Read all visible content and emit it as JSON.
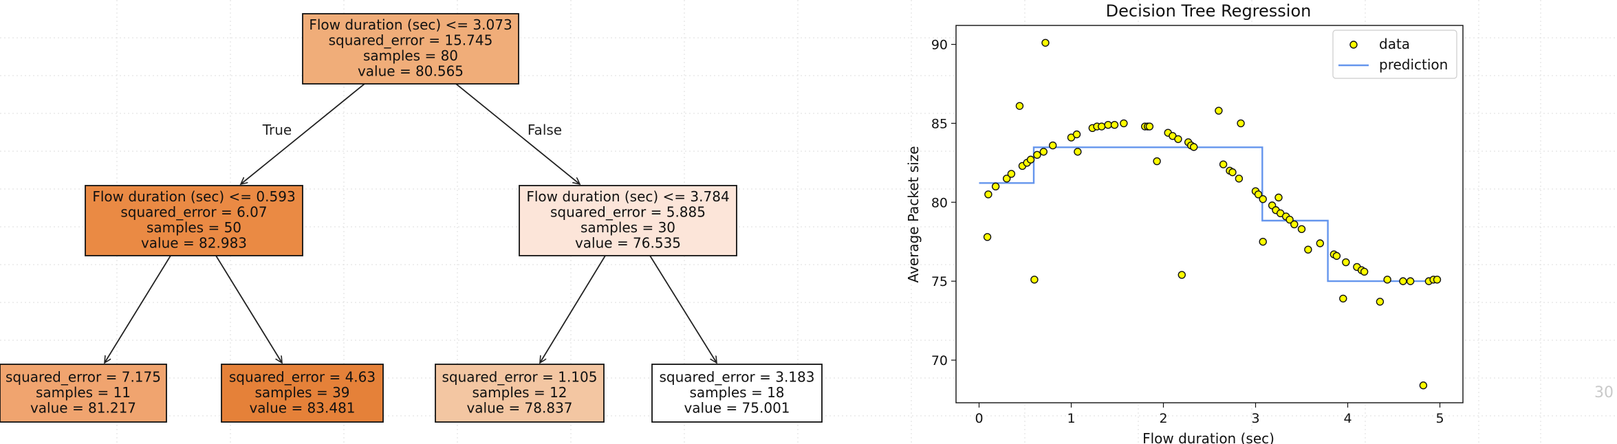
{
  "page_number": "30",
  "tree": {
    "nodes": [
      {
        "id": "root",
        "lines": [
          "Flow duration (sec) <= 3.073",
          "squared_error = 15.745",
          "samples = 80",
          "value = 80.565"
        ],
        "fill": "#f0ad79"
      },
      {
        "id": "left",
        "lines": [
          "Flow duration (sec) <= 0.593",
          "squared_error = 6.07",
          "samples = 50",
          "value = 82.983"
        ],
        "fill": "#ea8a44"
      },
      {
        "id": "right",
        "lines": [
          "Flow duration (sec) <= 3.784",
          "squared_error = 5.885",
          "samples = 30",
          "value = 76.535"
        ],
        "fill": "#fce5d9"
      },
      {
        "id": "ll",
        "lines": [
          "squared_error = 7.175",
          "samples = 11",
          "value = 81.217"
        ],
        "fill": "#f0a46f"
      },
      {
        "id": "lr",
        "lines": [
          "squared_error = 4.63",
          "samples = 39",
          "value = 83.481"
        ],
        "fill": "#e58139"
      },
      {
        "id": "rl",
        "lines": [
          "squared_error = 1.105",
          "samples = 12",
          "value = 78.837"
        ],
        "fill": "#f3c6a2"
      },
      {
        "id": "rr",
        "lines": [
          "squared_error = 3.183",
          "samples = 18",
          "value = 75.001"
        ],
        "fill": "#ffffff"
      }
    ],
    "edge_labels": {
      "true": "True",
      "false": "False"
    }
  },
  "chart_data": {
    "type": "scatter",
    "title": "Decision Tree Regression",
    "xlabel": "Flow duration (sec)",
    "ylabel": "Average Packet size",
    "xlim": [
      -0.25,
      5.25
    ],
    "ylim": [
      67.3,
      91.2
    ],
    "xticks": [
      0,
      1,
      2,
      3,
      4,
      5
    ],
    "yticks": [
      70,
      75,
      80,
      85,
      90
    ],
    "grid": false,
    "legend": {
      "placement": "top-right",
      "entries": [
        "data",
        "prediction"
      ]
    },
    "series": [
      {
        "name": "data",
        "kind": "scatter",
        "color": "#ffff00",
        "edge_color": "#111111",
        "points": [
          [
            0.09,
            77.8
          ],
          [
            0.1,
            80.5
          ],
          [
            0.18,
            81.0
          ],
          [
            0.3,
            81.5
          ],
          [
            0.35,
            81.8
          ],
          [
            0.44,
            86.1
          ],
          [
            0.47,
            82.3
          ],
          [
            0.52,
            82.5
          ],
          [
            0.56,
            82.7
          ],
          [
            0.6,
            75.1
          ],
          [
            0.63,
            83.0
          ],
          [
            0.7,
            83.2
          ],
          [
            0.72,
            90.1
          ],
          [
            0.8,
            83.6
          ],
          [
            1.0,
            84.1
          ],
          [
            1.06,
            84.3
          ],
          [
            1.07,
            83.2
          ],
          [
            1.23,
            84.7
          ],
          [
            1.28,
            84.8
          ],
          [
            1.33,
            84.8
          ],
          [
            1.4,
            84.9
          ],
          [
            1.47,
            84.9
          ],
          [
            1.57,
            85.0
          ],
          [
            1.8,
            84.8
          ],
          [
            1.83,
            84.8
          ],
          [
            1.85,
            84.8
          ],
          [
            1.93,
            82.6
          ],
          [
            2.05,
            84.4
          ],
          [
            2.1,
            84.2
          ],
          [
            2.16,
            84.0
          ],
          [
            2.2,
            75.4
          ],
          [
            2.27,
            83.8
          ],
          [
            2.3,
            83.6
          ],
          [
            2.33,
            83.5
          ],
          [
            2.6,
            85.8
          ],
          [
            2.65,
            82.4
          ],
          [
            2.72,
            82.0
          ],
          [
            2.75,
            81.9
          ],
          [
            2.82,
            81.5
          ],
          [
            2.84,
            85.0
          ],
          [
            3.0,
            80.7
          ],
          [
            3.03,
            80.5
          ],
          [
            3.08,
            77.5
          ],
          [
            3.08,
            80.2
          ],
          [
            3.18,
            79.8
          ],
          [
            3.22,
            79.5
          ],
          [
            3.25,
            80.3
          ],
          [
            3.27,
            79.3
          ],
          [
            3.33,
            79.1
          ],
          [
            3.37,
            78.9
          ],
          [
            3.42,
            78.6
          ],
          [
            3.5,
            78.3
          ],
          [
            3.57,
            77.0
          ],
          [
            3.7,
            77.4
          ],
          [
            3.85,
            76.7
          ],
          [
            3.88,
            76.6
          ],
          [
            3.95,
            73.9
          ],
          [
            3.98,
            76.2
          ],
          [
            4.1,
            75.9
          ],
          [
            4.15,
            75.7
          ],
          [
            4.18,
            75.6
          ],
          [
            4.35,
            73.7
          ],
          [
            4.43,
            75.1
          ],
          [
            4.6,
            75.0
          ],
          [
            4.68,
            75.0
          ],
          [
            4.82,
            68.4
          ],
          [
            4.88,
            75.0
          ],
          [
            4.93,
            75.1
          ],
          [
            4.97,
            75.1
          ]
        ]
      },
      {
        "name": "prediction",
        "kind": "step",
        "color": "#6495ed",
        "points": [
          [
            0.0,
            81.217
          ],
          [
            0.593,
            81.217
          ],
          [
            0.593,
            83.481
          ],
          [
            3.073,
            83.481
          ],
          [
            3.073,
            78.837
          ],
          [
            3.784,
            78.837
          ],
          [
            3.784,
            75.001
          ],
          [
            4.99,
            75.001
          ]
        ]
      }
    ]
  }
}
